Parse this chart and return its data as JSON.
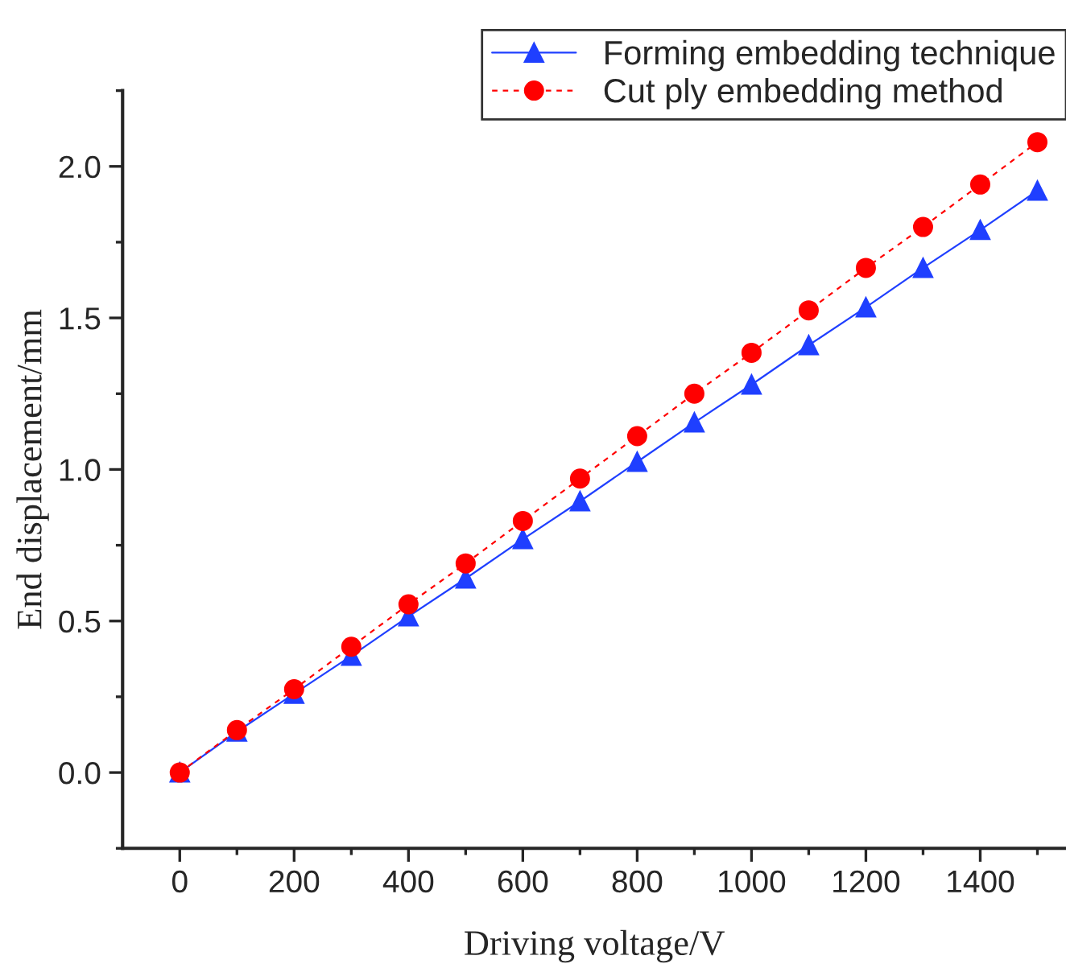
{
  "chart_data": {
    "type": "line",
    "xlabel": "Driving voltage/V",
    "ylabel": "End displacement/mm",
    "x": [
      0,
      100,
      200,
      300,
      400,
      500,
      600,
      700,
      800,
      900,
      1000,
      1100,
      1200,
      1300,
      1400,
      1500
    ],
    "series": [
      {
        "name": "Forming embedding technique",
        "color": "#1f3fff",
        "marker": "triangle",
        "line_style": "solid",
        "values": [
          0,
          0.135,
          0.26,
          0.385,
          0.515,
          0.64,
          0.77,
          0.895,
          1.025,
          1.155,
          1.28,
          1.41,
          1.535,
          1.665,
          1.79,
          1.92
        ]
      },
      {
        "name": "Cut ply embedding method",
        "color": "#ff0000",
        "marker": "circle",
        "line_style": "dashed",
        "values": [
          0,
          0.14,
          0.275,
          0.415,
          0.555,
          0.69,
          0.83,
          0.97,
          1.11,
          1.25,
          1.385,
          1.525,
          1.665,
          1.8,
          1.94,
          2.08
        ]
      }
    ],
    "xlim": [
      -100,
      1550
    ],
    "ylim": [
      -0.25,
      2.25
    ],
    "xticks": [
      0,
      200,
      400,
      600,
      800,
      1000,
      1200,
      1400
    ],
    "yticks": [
      {
        "value": 0,
        "label": "0.0"
      },
      {
        "value": 0.5,
        "label": "0.5"
      },
      {
        "value": 1,
        "label": "1.0"
      },
      {
        "value": 1.5,
        "label": "1.5"
      },
      {
        "value": 2,
        "label": "2.0"
      }
    ],
    "legend": "top right",
    "grid": false
  }
}
